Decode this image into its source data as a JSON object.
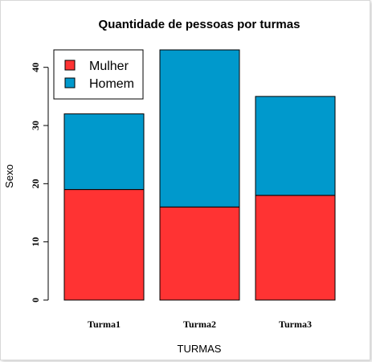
{
  "chart_data": {
    "type": "bar",
    "stacked": true,
    "title": "Quantidade de pessoas por turmas",
    "xlabel": "TURMAS",
    "ylabel": "Sexo",
    "categories": [
      "Turma1",
      "Turma2",
      "Turma3"
    ],
    "series": [
      {
        "name": "Mulher",
        "color": "#ff3333",
        "values": [
          19,
          16,
          18
        ]
      },
      {
        "name": "Homem",
        "color": "#0099cc",
        "values": [
          13,
          27,
          17
        ]
      }
    ],
    "ylim": [
      0,
      43
    ],
    "yticks": [
      "0",
      "10",
      "20",
      "30",
      "40"
    ],
    "grid": false,
    "legend_position": "top-left"
  }
}
